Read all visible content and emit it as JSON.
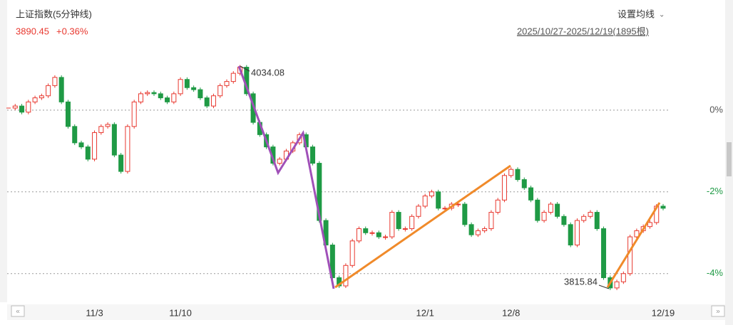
{
  "chart_data": {
    "type": "candlestick",
    "title": "上证指数(5分钟线)",
    "price": "3890.45",
    "change": "+0.36%",
    "settings_label": "设置均线",
    "range_label": "2025/10/27-2025/12/19(1895根)",
    "annotations": [
      "4034.08",
      "3815.84"
    ],
    "up_color": "#e8382f",
    "down_color": "#1f9a45",
    "ylim": [
      -4.7,
      1.65
    ],
    "yticks": [
      {
        "value": 0,
        "label": "0%"
      },
      {
        "value": -2,
        "label": "-2%"
      },
      {
        "value": -4,
        "label": "-4%"
      }
    ],
    "grid": true,
    "categories": [
      null,
      null,
      null,
      null,
      null,
      null,
      null,
      null,
      null,
      null,
      null,
      null,
      null,
      "11/3",
      null,
      null,
      null,
      null,
      null,
      null,
      null,
      null,
      null,
      null,
      null,
      null,
      "11/10",
      null,
      null,
      null,
      null,
      null,
      null,
      null,
      null,
      null,
      null,
      null,
      null,
      null,
      null,
      null,
      null,
      null,
      null,
      null,
      null,
      null,
      null,
      null,
      null,
      null,
      null,
      null,
      null,
      null,
      null,
      null,
      null,
      null,
      null,
      null,
      null,
      "12/1",
      null,
      null,
      null,
      null,
      null,
      null,
      null,
      null,
      null,
      null,
      null,
      null,
      "12/8",
      null,
      null,
      null,
      null,
      null,
      null,
      null,
      null,
      null,
      null,
      null,
      null,
      null,
      null,
      null,
      null,
      null,
      null,
      null,
      null,
      null,
      null,
      "12/19"
    ],
    "values": [
      0.05,
      0.1,
      -0.05,
      0.2,
      0.3,
      0.35,
      0.6,
      0.8,
      0.2,
      -0.4,
      -0.8,
      -0.9,
      -1.2,
      -0.55,
      -0.4,
      -0.35,
      -1.1,
      -1.5,
      -0.4,
      0.2,
      0.4,
      0.43,
      0.4,
      0.3,
      0.2,
      0.4,
      0.75,
      0.55,
      0.5,
      0.3,
      0.1,
      0.35,
      0.6,
      0.7,
      0.9,
      1.05,
      0.4,
      -0.3,
      -0.6,
      -0.9,
      -1.3,
      -1.2,
      -1.0,
      -0.8,
      -0.6,
      -0.9,
      -1.3,
      -2.7,
      -3.3,
      -4.1,
      -4.3,
      -3.8,
      -3.2,
      -2.9,
      -3.0,
      -3.0,
      -3.1,
      -3.1,
      -2.5,
      -2.9,
      -2.9,
      -2.6,
      -2.35,
      -2.1,
      -2.0,
      -2.4,
      -2.4,
      -2.3,
      -2.3,
      -2.8,
      -3.05,
      -2.95,
      -2.9,
      -2.5,
      -2.2,
      -1.6,
      -1.45,
      -1.7,
      -1.9,
      -2.2,
      -2.7,
      -2.5,
      -2.3,
      -2.6,
      -2.8,
      -3.3,
      -2.7,
      -2.6,
      -2.5,
      -2.9,
      -4.1,
      -4.35,
      -4.2,
      -4.0,
      -3.1,
      -2.95,
      -2.85,
      -2.75,
      -2.35,
      -2.4
    ]
  }
}
